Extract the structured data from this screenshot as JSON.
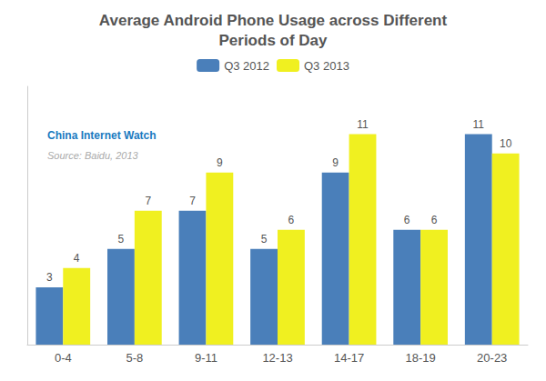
{
  "chart_data": {
    "type": "bar",
    "title": "Average Android Phone Usage across Different\nPeriods of Day",
    "categories": [
      "0-4",
      "5-8",
      "9-11",
      "12-13",
      "14-17",
      "18-19",
      "20-23"
    ],
    "series": [
      {
        "name": "Q3 2012",
        "color": "#4a7fba",
        "values": [
          3,
          5,
          7,
          5,
          9,
          6,
          11
        ]
      },
      {
        "name": "Q3 2013",
        "color": "#f0f020",
        "values": [
          4,
          7,
          9,
          6,
          11,
          6,
          10
        ]
      }
    ],
    "ylim": [
      0,
      13.5
    ],
    "grid": false,
    "legend": "top",
    "data_labels": true,
    "tick_labels": "x",
    "annotations": [
      {
        "text": "China Internet Watch",
        "color": "#1a7abf"
      },
      {
        "text": "Source: Baidu, 2013",
        "color": "#aaaaaa"
      }
    ]
  }
}
